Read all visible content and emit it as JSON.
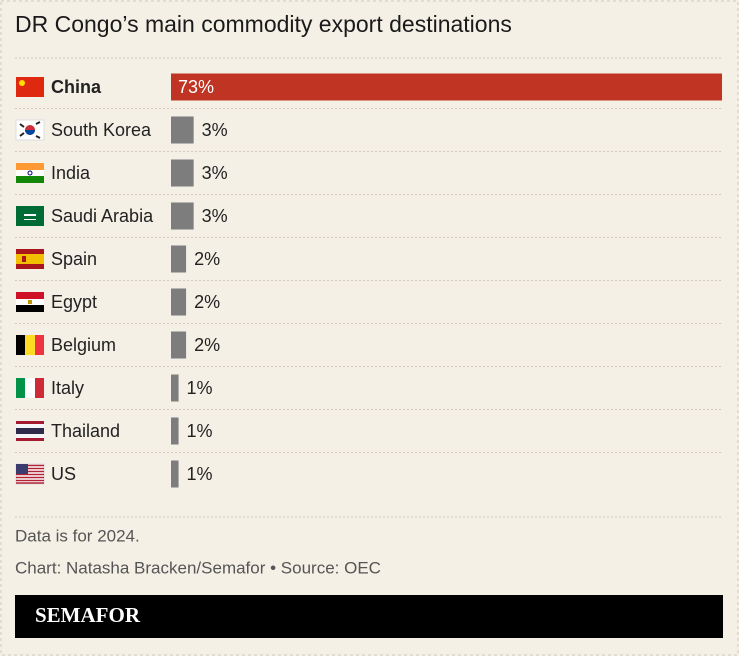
{
  "chart_data": {
    "type": "bar",
    "orientation": "horizontal",
    "title": "DR Congo’s main commodity export destinations",
    "categories": [
      "China",
      "South Korea",
      "India",
      "Saudi Arabia",
      "Spain",
      "Egypt",
      "Belgium",
      "Italy",
      "Thailand",
      "US"
    ],
    "values": [
      73,
      3,
      3,
      3,
      2,
      2,
      2,
      1,
      1,
      1
    ],
    "value_labels": [
      "73%",
      "3%",
      "3%",
      "3%",
      "2%",
      "2%",
      "2%",
      "1%",
      "1%",
      "1%"
    ],
    "colors": [
      "#bf3423",
      "#7d7d7d",
      "#7d7d7d",
      "#7d7d7d",
      "#7d7d7d",
      "#7d7d7d",
      "#7d7d7d",
      "#7d7d7d",
      "#7d7d7d",
      "#7d7d7d"
    ],
    "notes": [
      "Data is for 2024.",
      "Chart: Natasha Bracken/Semafor • Source: OEC"
    ],
    "brand": "SEMAFOR"
  }
}
